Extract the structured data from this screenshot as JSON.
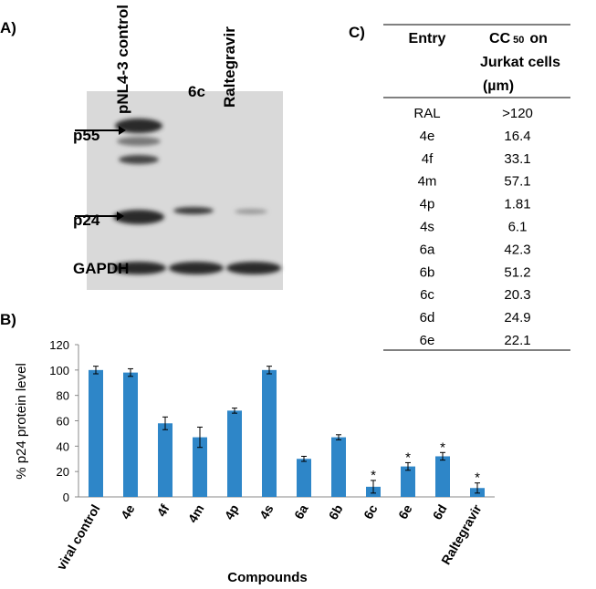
{
  "panels": {
    "a": "A)",
    "b": "B)",
    "c": "C)"
  },
  "blot": {
    "lanes": [
      "pNL4-3 control",
      "6c",
      "Raltegravir"
    ],
    "bands": [
      "p55",
      "p24",
      "GAPDH"
    ]
  },
  "chart_data": {
    "type": "bar",
    "xlabel": "Compounds",
    "ylabel": "% p24 protein level",
    "categories": [
      "viral control",
      "4e",
      "4f",
      "4m",
      "4p",
      "4s",
      "6a",
      "6b",
      "6c",
      "6e",
      "6d",
      "Raltegravir"
    ],
    "values": [
      100,
      98,
      58,
      47,
      68,
      100,
      30,
      47,
      8,
      24,
      32,
      7
    ],
    "errors": [
      3,
      3,
      5,
      8,
      2,
      3,
      2,
      2,
      5,
      3,
      3,
      4
    ],
    "markers": [
      null,
      null,
      null,
      null,
      null,
      null,
      null,
      null,
      "*",
      "*",
      "*",
      "*"
    ],
    "color": "#2e86c8",
    "ylim": [
      0,
      120
    ],
    "yticks": [
      0,
      20,
      40,
      60,
      80,
      100,
      120
    ],
    "grid": false
  },
  "table": {
    "header": {
      "entry": "Entry",
      "cc": "CC",
      "cc_sub": "50",
      "cc_on": "on",
      "line2": "Jurkat cells",
      "line3": "(µm)"
    },
    "rows": [
      [
        "RAL",
        ">120"
      ],
      [
        "4e",
        "16.4"
      ],
      [
        "4f",
        "33.1"
      ],
      [
        "4m",
        "57.1"
      ],
      [
        "4p",
        "1.81"
      ],
      [
        "4s",
        "6.1"
      ],
      [
        "6a",
        "42.3"
      ],
      [
        "6b",
        "51.2"
      ],
      [
        "6c",
        "20.3"
      ],
      [
        "6d",
        "24.9"
      ],
      [
        "6e",
        "22.1"
      ]
    ]
  }
}
